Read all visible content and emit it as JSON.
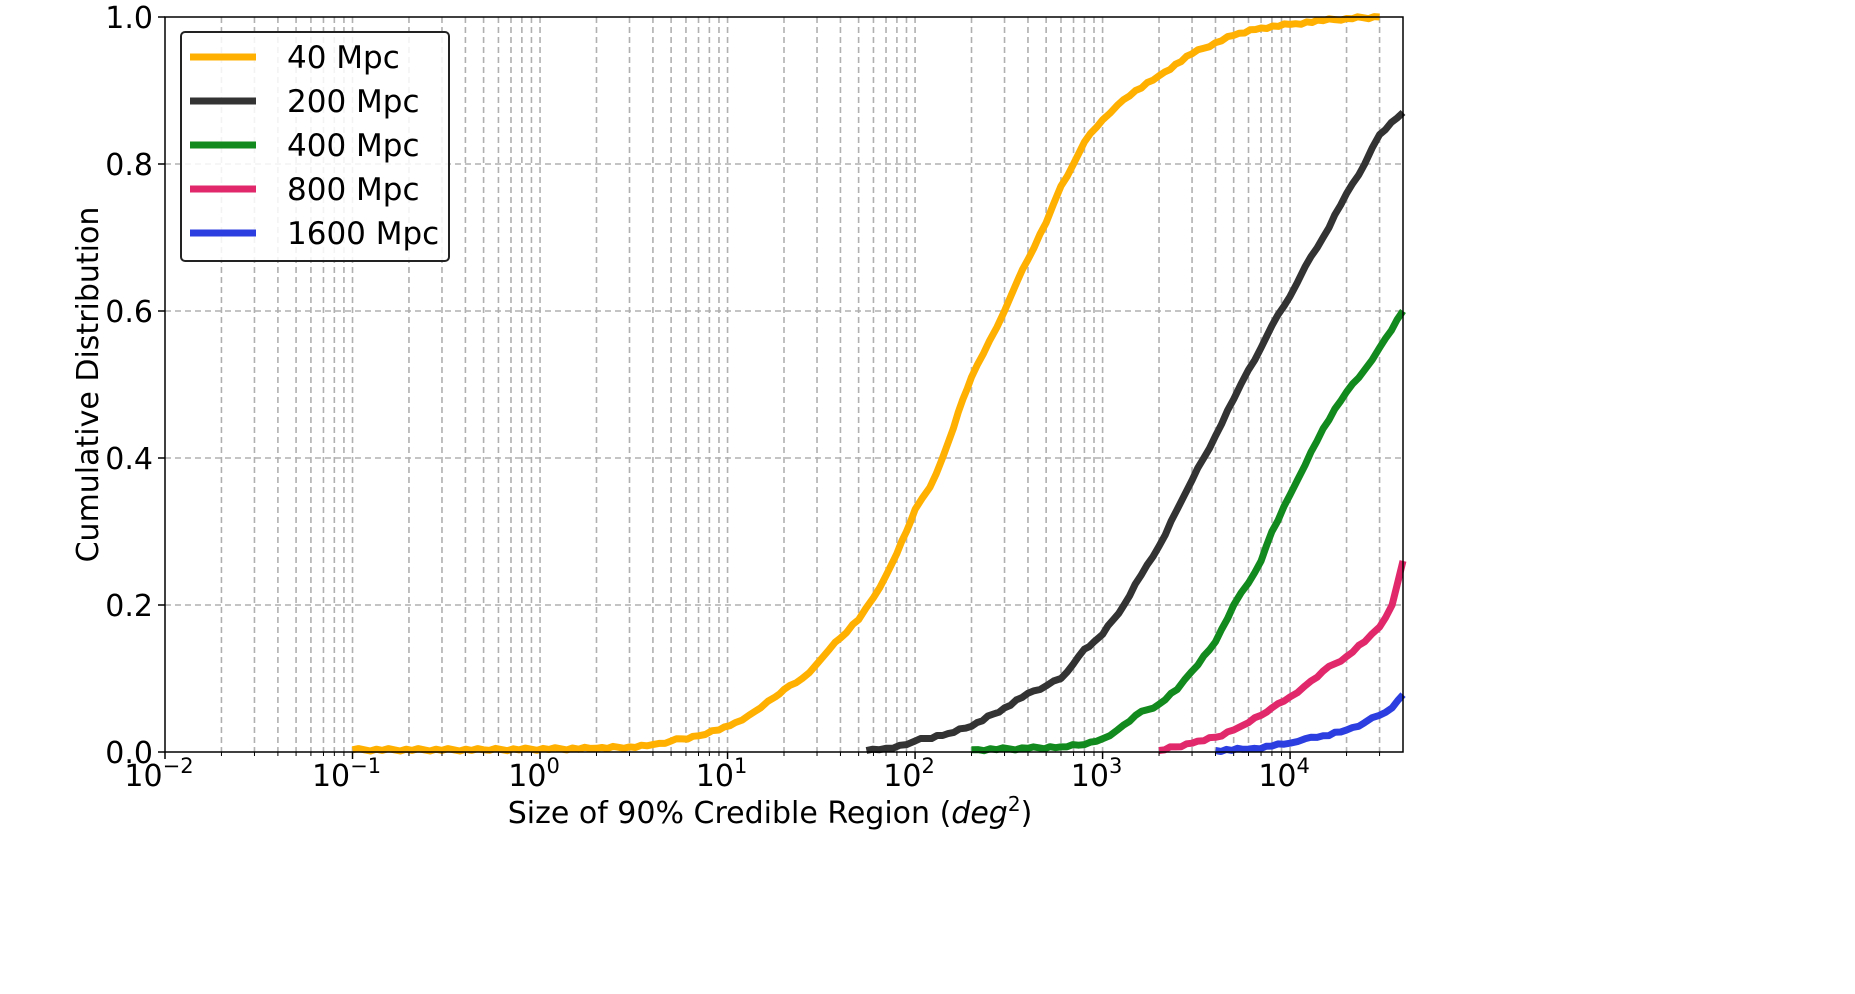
{
  "chart_data": {
    "type": "line",
    "title": "",
    "xlabel": "Size of 90% Credible Region (",
    "xlabel_italic": "deg",
    "xlabel_sup": "2",
    "xlabel_end": ")",
    "ylabel": "Cumulative Distribution",
    "xscale": "log",
    "xlim": [
      0.01,
      40000
    ],
    "ylim": [
      0,
      1.0
    ],
    "grid": true,
    "grid_style": "dashed",
    "legend_position": "top-left",
    "x_ticks": [
      {
        "base": "10",
        "exp": "−2",
        "value": 0.01
      },
      {
        "base": "10",
        "exp": "−1",
        "value": 0.1
      },
      {
        "base": "10",
        "exp": "0",
        "value": 1
      },
      {
        "base": "10",
        "exp": "1",
        "value": 10
      },
      {
        "base": "10",
        "exp": "2",
        "value": 100
      },
      {
        "base": "10",
        "exp": "3",
        "value": 1000
      },
      {
        "base": "10",
        "exp": "4",
        "value": 10000
      }
    ],
    "y_ticks": [
      "0.0",
      "0.2",
      "0.4",
      "0.6",
      "0.8",
      "1.0"
    ],
    "series": [
      {
        "name": "40 Mpc",
        "color": "#ffb000",
        "x": [
          0.1,
          0.5,
          2,
          3,
          4,
          5,
          7,
          9,
          11,
          13,
          15,
          18,
          20,
          25,
          30,
          35,
          40,
          50,
          60,
          70,
          80,
          90,
          100,
          120,
          140,
          160,
          180,
          200,
          250,
          300,
          350,
          400,
          500,
          600,
          700,
          800,
          1000,
          1200,
          1500,
          2000,
          3000,
          4000,
          5000,
          7000,
          10000,
          15000,
          20000,
          30000
        ],
        "y": [
          0.003,
          0.003,
          0.005,
          0.007,
          0.01,
          0.015,
          0.022,
          0.03,
          0.04,
          0.05,
          0.06,
          0.075,
          0.085,
          0.1,
          0.12,
          0.14,
          0.155,
          0.18,
          0.21,
          0.24,
          0.27,
          0.3,
          0.33,
          0.36,
          0.4,
          0.44,
          0.48,
          0.51,
          0.56,
          0.6,
          0.64,
          0.67,
          0.72,
          0.77,
          0.8,
          0.83,
          0.86,
          0.88,
          0.9,
          0.92,
          0.95,
          0.965,
          0.975,
          0.985,
          0.99,
          0.995,
          0.998,
          1.0
        ]
      },
      {
        "name": "200 Mpc",
        "color": "#333333",
        "x": [
          55,
          70,
          90,
          100,
          150,
          200,
          300,
          400,
          500,
          600,
          700,
          800,
          900,
          1000,
          1300,
          1600,
          2000,
          2500,
          3000,
          4000,
          5000,
          6000,
          7000,
          8000,
          10000,
          12000,
          15000,
          20000,
          25000,
          30000,
          40000
        ],
        "y": [
          0.002,
          0.005,
          0.01,
          0.015,
          0.025,
          0.035,
          0.06,
          0.08,
          0.09,
          0.1,
          0.12,
          0.14,
          0.15,
          0.16,
          0.2,
          0.24,
          0.28,
          0.33,
          0.37,
          0.43,
          0.48,
          0.52,
          0.55,
          0.58,
          0.62,
          0.66,
          0.7,
          0.76,
          0.8,
          0.84,
          0.87
        ]
      },
      {
        "name": "400 Mpc",
        "color": "#138a1d",
        "x": [
          200,
          400,
          600,
          800,
          1000,
          1200,
          1500,
          2000,
          2500,
          3000,
          4000,
          5000,
          6000,
          7000,
          8000,
          10000,
          12000,
          15000,
          20000,
          25000,
          30000,
          40000
        ],
        "y": [
          0.003,
          0.005,
          0.007,
          0.01,
          0.018,
          0.03,
          0.05,
          0.065,
          0.085,
          0.11,
          0.15,
          0.2,
          0.23,
          0.26,
          0.3,
          0.35,
          0.39,
          0.44,
          0.49,
          0.52,
          0.55,
          0.6
        ]
      },
      {
        "name": "800 Mpc",
        "color": "#e0286b",
        "x": [
          2000,
          3000,
          4000,
          5000,
          6000,
          7000,
          8000,
          10000,
          12000,
          15000,
          20000,
          25000,
          30000,
          35000,
          40000
        ],
        "y": [
          0.002,
          0.012,
          0.02,
          0.03,
          0.04,
          0.05,
          0.06,
          0.075,
          0.09,
          0.11,
          0.13,
          0.15,
          0.17,
          0.2,
          0.26
        ]
      },
      {
        "name": "1600 Mpc",
        "color": "#2c3ee0",
        "x": [
          4000,
          6000,
          8000,
          10000,
          12000,
          15000,
          20000,
          25000,
          30000,
          35000,
          40000
        ],
        "y": [
          0.002,
          0.004,
          0.008,
          0.012,
          0.018,
          0.022,
          0.03,
          0.04,
          0.05,
          0.06,
          0.078
        ]
      }
    ]
  }
}
